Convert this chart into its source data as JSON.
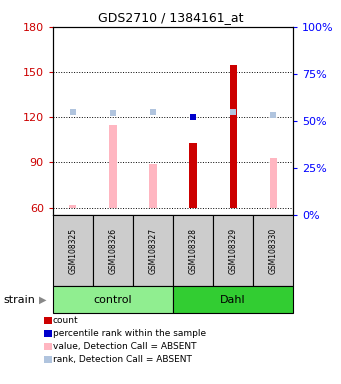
{
  "title": "GDS2710 / 1384161_at",
  "samples": [
    "GSM108325",
    "GSM108326",
    "GSM108327",
    "GSM108328",
    "GSM108329",
    "GSM108330"
  ],
  "ylim_left": [
    55,
    180
  ],
  "ylim_right": [
    0,
    100
  ],
  "yticks_left": [
    60,
    90,
    120,
    150,
    180
  ],
  "yticks_right": [
    0,
    25,
    50,
    75,
    100
  ],
  "ytick_labels_right": [
    "0%",
    "25%",
    "50%",
    "75%",
    "100%"
  ],
  "bar_values": [
    62,
    115,
    89,
    103,
    155,
    93
  ],
  "bar_colors": [
    "#FFB6C1",
    "#FFB6C1",
    "#FFB6C1",
    "#CC0000",
    "#CC0000",
    "#FFB6C1"
  ],
  "rank_values": [
    55,
    54,
    55,
    52,
    55,
    53
  ],
  "rank_colors": [
    "#B0C4DE",
    "#B0C4DE",
    "#B0C4DE",
    "#0000CC",
    "#B0C4DE",
    "#B0C4DE"
  ],
  "color_bar_absent": "#FFB6C1",
  "color_bar_present": "#CC0000",
  "color_rank_absent": "#B0C4DE",
  "color_rank_present": "#0000CC",
  "legend_items": [
    {
      "color": "#CC0000",
      "label": "count"
    },
    {
      "color": "#0000CC",
      "label": "percentile rank within the sample"
    },
    {
      "color": "#FFB6C1",
      "label": "value, Detection Call = ABSENT"
    },
    {
      "color": "#B0C4DE",
      "label": "rank, Detection Call = ABSENT"
    }
  ],
  "group_colors_control": "#90EE90",
  "group_colors_dahl": "#32CD32",
  "bar_width": 0.18,
  "marker_size": 5
}
